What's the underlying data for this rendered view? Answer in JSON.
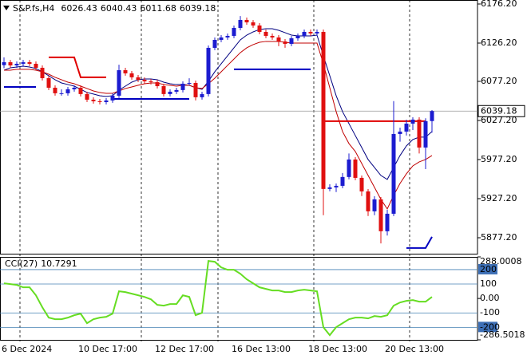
{
  "chart_data": [
    {
      "type": "candlestick",
      "title": "S&P.fs,H4",
      "header_values": [
        6026.43,
        6040.43,
        6011.68,
        6039.18
      ],
      "x_tick_labels": [
        "6 Dec 2024",
        "10 Dec 17:00",
        "12 Dec 17:00",
        "16 Dec 13:00",
        "18 Dec 13:00",
        "20 Dec 13:00"
      ],
      "up_color": "#1c1cd0",
      "down_color": "#e01010",
      "open": [
        6098.0,
        6101.7,
        6097.6,
        6099.7,
        6101.7,
        6099.7,
        6094.6,
        6081.3,
        6069.1,
        6062.0,
        6062.0,
        6067.1,
        6069.1,
        6061.0,
        6053.8,
        6051.8,
        6050.7,
        6052.8,
        6058.9,
        6091.5,
        6087.5,
        6082.4,
        6079.3,
        6077.3,
        6076.2,
        6071.1,
        6061.0,
        6064.0,
        6066.1,
        6074.2,
        6075.2,
        6056.9,
        6061.0,
        6120.1,
        6130.3,
        6133.4,
        6135.4,
        6145.6,
        6155.8,
        6152.7,
        6148.7,
        6140.5,
        6135.4,
        6133.4,
        6128.3,
        6125.2,
        6132.3,
        6135.4,
        6140.5,
        6138.5,
        6140.5,
        5939.6,
        5941.6,
        5943.6,
        5954.9,
        5977.3,
        5953.8,
        5936.5,
        5911.0,
        5926.3,
        5885.5,
        5907.9,
        6009.9,
        6013.0,
        6023.2,
        6028.3,
        5992.6,
        6026.43
      ],
      "high": [
        6108.0,
        6104.7,
        6102.7,
        6104.7,
        6104.7,
        6102.7,
        6097.6,
        6084.3,
        6072.1,
        6067.0,
        6070.1,
        6072.1,
        6072.1,
        6064.0,
        6056.8,
        6054.8,
        6055.8,
        6061.9,
        6098.5,
        6094.5,
        6090.5,
        6085.4,
        6082.3,
        6080.3,
        6079.2,
        6074.1,
        6067.0,
        6069.1,
        6077.2,
        6081.2,
        6078.2,
        6064.0,
        6123.1,
        6133.3,
        6136.4,
        6138.4,
        6148.6,
        6160.8,
        6158.8,
        6155.7,
        6151.7,
        6143.5,
        6138.4,
        6136.4,
        6131.3,
        6135.3,
        6138.4,
        6143.5,
        6143.5,
        6143.5,
        6143.5,
        5945.6,
        5946.6,
        5960.0,
        5985.0,
        5980.3,
        5956.8,
        5939.5,
        5930.3,
        5929.3,
        5912.9,
        6052.0,
        6018.0,
        6028.2,
        6031.3,
        6031.3,
        6030.0,
        6040.43
      ],
      "low": [
        6094.0,
        6094.6,
        6094.6,
        6096.7,
        6096.7,
        6091.6,
        6078.3,
        6066.1,
        6059.0,
        6059.0,
        6059.0,
        6064.1,
        6058.0,
        6050.8,
        6048.8,
        6047.7,
        6047.7,
        6049.8,
        6055.9,
        6084.5,
        6079.4,
        6076.3,
        6074.3,
        6073.2,
        6068.1,
        6058.0,
        6058.0,
        6061.0,
        6063.1,
        6072.2,
        6052.9,
        6053.9,
        6058.0,
        6117.1,
        6127.3,
        6130.4,
        6132.4,
        6142.6,
        6149.7,
        6145.7,
        6137.5,
        6132.4,
        6130.4,
        6122.3,
        6120.2,
        6122.2,
        6129.3,
        6132.4,
        6135.5,
        6135.5,
        5906.0,
        5936.6,
        5935.6,
        5940.6,
        5951.9,
        5950.8,
        5930.5,
        5905.0,
        5906.0,
        5870.0,
        5880.0,
        5904.9,
        6000.0,
        6008.0,
        6015.0,
        5985.0,
        5965.0,
        6011.68
      ],
      "close": [
        6101.7,
        6097.6,
        6099.7,
        6101.7,
        6099.7,
        6094.6,
        6081.3,
        6069.1,
        6062.0,
        6062.0,
        6067.1,
        6069.1,
        6061.0,
        6053.8,
        6051.8,
        6050.7,
        6052.8,
        6058.9,
        6091.5,
        6087.5,
        6082.4,
        6079.3,
        6077.3,
        6076.2,
        6071.1,
        6061.0,
        6064.0,
        6066.1,
        6074.2,
        6075.2,
        6056.9,
        6061.0,
        6120.1,
        6130.3,
        6133.4,
        6135.4,
        6145.6,
        6155.8,
        6152.7,
        6148.7,
        6140.5,
        6135.4,
        6133.4,
        6128.3,
        6125.2,
        6132.3,
        6135.4,
        6140.5,
        6138.5,
        6140.5,
        5939.6,
        5941.6,
        5943.6,
        5954.9,
        5977.3,
        5953.8,
        5936.5,
        5911.0,
        5926.3,
        5885.5,
        5907.9,
        6009.9,
        6013.0,
        6023.2,
        6028.3,
        5992.6,
        6026.4,
        6039.18
      ],
      "series": [
        {
          "color": "#000080",
          "values": [
            6091.5,
            6094.6,
            6095.6,
            6096.6,
            6095.6,
            6093.6,
            6089.5,
            6084.4,
            6079.3,
            6075.2,
            6073.2,
            6071.1,
            6067.1,
            6063.0,
            6061.0,
            6058.9,
            6057.9,
            6058.9,
            6066.0,
            6071.1,
            6076.2,
            6079.3,
            6080.3,
            6080.3,
            6079.3,
            6076.2,
            6074.2,
            6073.2,
            6073.2,
            6072.2,
            6069.1,
            6067.1,
            6077.3,
            6089.5,
            6099.7,
            6109.9,
            6120.1,
            6130.3,
            6136.4,
            6140.5,
            6143.6,
            6144.6,
            6144.6,
            6142.5,
            6139.5,
            6136.4,
            6135.4,
            6135.4,
            6135.4,
            6136.4,
            6109.9,
            6084.4,
            6058.9,
            6038.5,
            6023.2,
            6007.9,
            5992.6,
            5977.3,
            5967.1,
            5956.9,
            5951.8,
            5967.1,
            5982.4,
            5994.7,
            6002.8,
            6005.9,
            6005.9,
            6013.0
          ]
        },
        {
          "color": "#c00000",
          "values": [
            6091.5,
            6091.5,
            6092.6,
            6092.6,
            6092.6,
            6091.5,
            6089.5,
            6086.4,
            6082.4,
            6079.3,
            6076.2,
            6074.2,
            6071.1,
            6068.1,
            6065.0,
            6063.0,
            6061.9,
            6061.9,
            6065.0,
            6068.1,
            6070.1,
            6072.2,
            6074.2,
            6075.2,
            6075.2,
            6073.2,
            6072.2,
            6071.1,
            6072.2,
            6072.2,
            6069.1,
            6068.1,
            6074.2,
            6081.3,
            6089.5,
            6097.7,
            6105.8,
            6114.0,
            6120.1,
            6124.2,
            6127.2,
            6128.3,
            6128.3,
            6128.3,
            6127.2,
            6126.2,
            6126.2,
            6126.2,
            6126.2,
            6126.2,
            6099.7,
            6069.1,
            6038.5,
            6013.0,
            5997.7,
            5987.5,
            5972.2,
            5956.9,
            5941.6,
            5926.3,
            5914.1,
            5931.4,
            5946.7,
            5959.0,
            5969.1,
            5974.2,
            5977.3,
            5982.4
          ]
        },
        {
          "color": "#0000c0",
          "values": [
            6070.1,
            6070.1,
            6070.1,
            6070.1,
            6070.1,
            6070.1,
            null,
            null,
            null,
            null,
            null,
            null,
            null,
            null,
            null,
            null,
            null,
            6054.8,
            6054.8,
            6054.8,
            6054.8,
            6054.8,
            6054.8,
            6054.8,
            6054.8,
            6054.8,
            6054.8,
            6054.8,
            6054.8,
            6054.8,
            null,
            null,
            null,
            null,
            null,
            null,
            6092.6,
            6092.6,
            6092.6,
            6092.6,
            6092.6,
            6092.6,
            6092.6,
            6092.6,
            6092.6,
            6092.6,
            6092.6,
            6092.6,
            6092.6,
            null,
            null,
            null,
            null,
            null,
            null,
            null,
            null,
            null,
            null,
            null,
            null,
            null,
            null,
            5864.1,
            5864.1,
            5864.1,
            5864.1,
            5878.4
          ]
        },
        {
          "color": "#e00000",
          "values": [
            null,
            null,
            null,
            null,
            null,
            null,
            null,
            6107.9,
            6107.9,
            6107.9,
            6107.9,
            6107.9,
            6082.4,
            6082.4,
            6082.4,
            6082.4,
            6082.4,
            null,
            null,
            null,
            null,
            null,
            null,
            null,
            null,
            null,
            null,
            null,
            null,
            null,
            null,
            null,
            null,
            null,
            null,
            null,
            null,
            null,
            null,
            null,
            null,
            null,
            null,
            null,
            null,
            null,
            null,
            null,
            null,
            null,
            6026.3,
            6026.3,
            6026.3,
            6026.3,
            6026.3,
            6026.3,
            6026.3,
            6026.3,
            6026.3,
            6026.3,
            6026.3,
            6026.3,
            6026.3,
            6026.3,
            6026.3,
            6026.3,
            6026.3,
            null
          ]
        }
      ],
      "last_price": 6039.18,
      "ylim": [
        5856.8,
        6181.3
      ],
      "yticks": [
        {
          "value": 6176.2,
          "label": "6176.20"
        },
        {
          "value": 6126.2,
          "label": "6126.20"
        },
        {
          "value": 6077.2,
          "label": "6077.20"
        },
        {
          "value": 6027.2,
          "label": "6027.20"
        },
        {
          "value": 5977.2,
          "label": "5977.20"
        },
        {
          "value": 5927.2,
          "label": "5927.20"
        },
        {
          "value": 5877.2,
          "label": "5877.20"
        }
      ]
    },
    {
      "type": "line",
      "title": "CCI(27)",
      "title_value": 10.7291,
      "series": [
        {
          "color": "#66dd22",
          "values": [
            105,
            99.4,
            93.9,
            77.3,
            77.3,
            22.1,
            -60.8,
            -132.6,
            -143.6,
            -143.6,
            -132.6,
            -116,
            -105,
            -171.3,
            -143.6,
            -132.6,
            -127,
            -105,
            49.7,
            44.2,
            33.1,
            22.1,
            11,
            -5.5,
            -44.2,
            -49.7,
            -38.7,
            -38.7,
            22.1,
            11,
            -116,
            -99.4,
            259.7,
            254.1,
            215.5,
            198.9,
            198.9,
            171.3,
            132.6,
            105,
            77.3,
            66.3,
            55.2,
            55.2,
            44.2,
            44.2,
            55.2,
            60.8,
            55.2,
            49.7,
            -198.9,
            -254.1,
            -198.9,
            -171.3,
            -143.6,
            -132.6,
            -132.6,
            -138.1,
            -121.5,
            -127,
            -116,
            -49.7,
            -27.6,
            -16.6,
            -11,
            -22.1,
            -22.1,
            10.7291
          ]
        }
      ],
      "ylim": [
        -286.5018,
        288.0008
      ],
      "yticks": [
        288.0008,
        200,
        100,
        {
          "value": 0,
          "label": "0.00"
        },
        -100,
        -200,
        -286.5018
      ]
    }
  ]
}
